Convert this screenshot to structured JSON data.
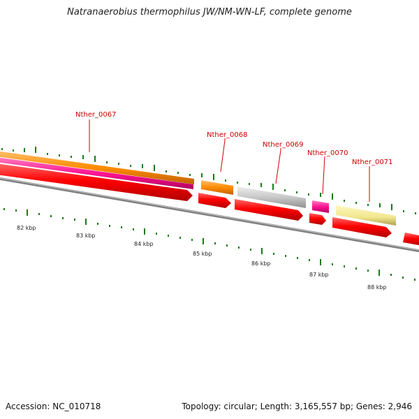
{
  "title": "Natranaerobius thermophilus JW/NM-WN-LF, complete genome",
  "footer": {
    "accession": "Accession: NC_010718",
    "topology": "Topology: circular; Length: 3,165,557 bp; Genes: 2,946"
  },
  "colors": {
    "cds_red": "#ff0000",
    "orange": "#ff8c00",
    "magenta": "#ff1493",
    "gray": "#c8c8c8",
    "pale_yellow": "#f0e68c",
    "backbone": "#808080",
    "label_red": "#cc0000",
    "tick_green": "#1a7a1a"
  },
  "genes": [
    {
      "name": "Nther_0067"
    },
    {
      "name": "Nther_0068"
    },
    {
      "name": "Nther_0069"
    },
    {
      "name": "Nther_0070"
    },
    {
      "name": "Nther_0071"
    }
  ],
  "scale_labels": [
    "82 kbp",
    "83 kbp",
    "84 kbp",
    "85 kbp",
    "86 kbp",
    "87 kbp",
    "88 kbp"
  ]
}
